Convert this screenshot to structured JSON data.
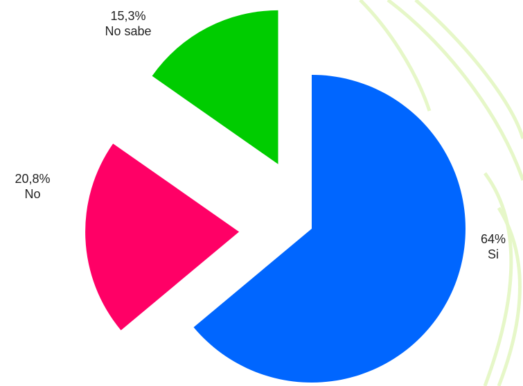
{
  "chart_data": {
    "type": "pie",
    "categories": [
      "Si",
      "No",
      "No sabe"
    ],
    "values": [
      64,
      20.8,
      15.3
    ],
    "value_labels": [
      "64%",
      "20,8%",
      "15,3%"
    ],
    "colors": [
      "#0066ff",
      "#ff0066",
      "#00cc00"
    ]
  }
}
